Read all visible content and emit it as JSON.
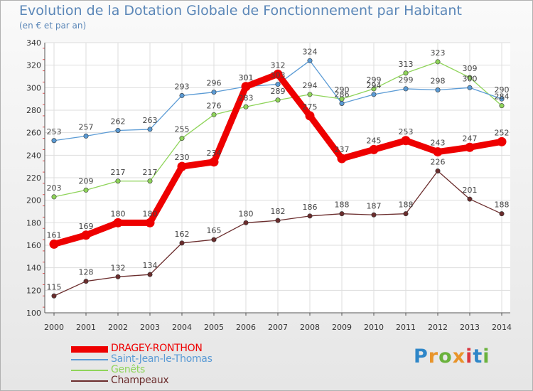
{
  "chart_data": {
    "type": "line",
    "title": "Evolution de la Dotation Globale de Fonctionnement par Habitant",
    "subtitle": "(en € et par an)",
    "xlabel": "",
    "ylabel": "",
    "ylim": [
      100,
      340
    ],
    "yticks": [
      100,
      120,
      140,
      160,
      180,
      200,
      220,
      240,
      260,
      280,
      300,
      320,
      340
    ],
    "categories": [
      "2000",
      "2001",
      "2002",
      "2003",
      "2004",
      "2005",
      "2006",
      "2007",
      "2008",
      "2009",
      "2010",
      "2011",
      "2012",
      "2013",
      "2014"
    ],
    "grid": true,
    "legend_position": "bottom-left",
    "series": [
      {
        "name": "DRAGEY-RONTHON",
        "color": "#ee0000",
        "values": [
          161,
          169,
          180,
          180,
          230,
          234,
          301,
          312,
          275,
          237,
          245,
          253,
          243,
          247,
          252
        ]
      },
      {
        "name": "Saint-Jean-le-Thomas",
        "color": "#5b9bd5",
        "values": [
          253,
          257,
          262,
          263,
          293,
          296,
          301,
          303,
          324,
          286,
          294,
          299,
          298,
          300,
          290
        ]
      },
      {
        "name": "Genêts",
        "color": "#8fd45a",
        "values": [
          203,
          209,
          217,
          217,
          255,
          276,
          283,
          289,
          294,
          290,
          299,
          313,
          323,
          309,
          284
        ]
      },
      {
        "name": "Champeaux",
        "color": "#6b2d2d",
        "values": [
          115,
          128,
          132,
          134,
          162,
          165,
          180,
          182,
          186,
          188,
          187,
          188,
          226,
          201,
          188
        ]
      }
    ]
  },
  "logo": {
    "letters": [
      "P",
      "r",
      "o",
      "x",
      "i",
      "t",
      "i"
    ],
    "colors": [
      "#2e86c8",
      "#e8942a",
      "#6ab23c",
      "#e8942a",
      "#d9363e",
      "#2e86c8",
      "#6ab23c"
    ]
  }
}
